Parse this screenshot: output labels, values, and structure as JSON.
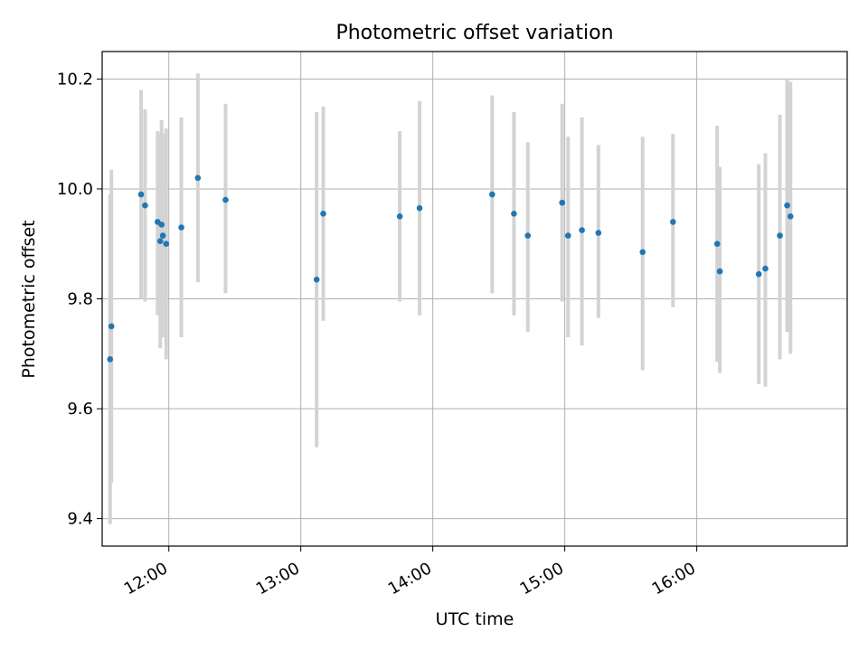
{
  "chart_data": {
    "type": "scatter",
    "title": "Photometric offset variation",
    "xlabel": "UTC time",
    "ylabel": "Photometric offset",
    "xlim_hours": [
      11.495,
      17.14
    ],
    "ylim": [
      9.35,
      10.25
    ],
    "grid": true,
    "x_ticks": [
      {
        "value": 12,
        "label": "12:00"
      },
      {
        "value": 13,
        "label": "13:00"
      },
      {
        "value": 14,
        "label": "14:00"
      },
      {
        "value": 15,
        "label": "15:00"
      },
      {
        "value": 16,
        "label": "16:00"
      }
    ],
    "y_ticks": [
      {
        "value": 9.4,
        "label": "9.4"
      },
      {
        "value": 9.6,
        "label": "9.6"
      },
      {
        "value": 9.8,
        "label": "9.8"
      },
      {
        "value": 10.0,
        "label": "10.0"
      },
      {
        "value": 10.2,
        "label": "10.2"
      }
    ],
    "point_color": "#1f77b4",
    "errorbar_color": "#d3d3d3",
    "points": [
      {
        "x": 11.555,
        "y": 9.69,
        "ylow": 9.39,
        "yhigh": 9.99
      },
      {
        "x": 11.565,
        "y": 9.75,
        "ylow": 9.465,
        "yhigh": 10.035
      },
      {
        "x": 11.79,
        "y": 9.99,
        "ylow": 9.8,
        "yhigh": 10.18
      },
      {
        "x": 11.82,
        "y": 9.97,
        "ylow": 9.795,
        "yhigh": 10.145
      },
      {
        "x": 11.915,
        "y": 9.94,
        "ylow": 9.77,
        "yhigh": 10.105
      },
      {
        "x": 11.935,
        "y": 9.905,
        "ylow": 9.71,
        "yhigh": 10.1
      },
      {
        "x": 11.945,
        "y": 9.935,
        "ylow": 9.76,
        "yhigh": 10.125
      },
      {
        "x": 11.955,
        "y": 9.915,
        "ylow": 9.73,
        "yhigh": 10.1
      },
      {
        "x": 11.98,
        "y": 9.9,
        "ylow": 9.69,
        "yhigh": 10.11
      },
      {
        "x": 12.095,
        "y": 9.93,
        "ylow": 9.73,
        "yhigh": 10.13
      },
      {
        "x": 12.22,
        "y": 10.02,
        "ylow": 9.83,
        "yhigh": 10.21
      },
      {
        "x": 12.43,
        "y": 9.98,
        "ylow": 9.81,
        "yhigh": 10.155
      },
      {
        "x": 13.12,
        "y": 9.835,
        "ylow": 9.53,
        "yhigh": 10.14
      },
      {
        "x": 13.17,
        "y": 9.955,
        "ylow": 9.76,
        "yhigh": 10.15
      },
      {
        "x": 13.75,
        "y": 9.95,
        "ylow": 9.795,
        "yhigh": 10.105
      },
      {
        "x": 13.9,
        "y": 9.965,
        "ylow": 9.77,
        "yhigh": 10.16
      },
      {
        "x": 14.45,
        "y": 9.99,
        "ylow": 9.81,
        "yhigh": 10.17
      },
      {
        "x": 14.615,
        "y": 9.955,
        "ylow": 9.77,
        "yhigh": 10.14
      },
      {
        "x": 14.72,
        "y": 9.915,
        "ylow": 9.74,
        "yhigh": 10.085
      },
      {
        "x": 14.98,
        "y": 9.975,
        "ylow": 9.795,
        "yhigh": 10.155
      },
      {
        "x": 15.025,
        "y": 9.915,
        "ylow": 9.73,
        "yhigh": 10.095
      },
      {
        "x": 15.13,
        "y": 9.925,
        "ylow": 9.715,
        "yhigh": 10.13
      },
      {
        "x": 15.255,
        "y": 9.92,
        "ylow": 9.765,
        "yhigh": 10.08
      },
      {
        "x": 15.59,
        "y": 9.885,
        "ylow": 9.67,
        "yhigh": 10.095
      },
      {
        "x": 15.82,
        "y": 9.94,
        "ylow": 9.785,
        "yhigh": 10.1
      },
      {
        "x": 16.155,
        "y": 9.9,
        "ylow": 9.685,
        "yhigh": 10.115
      },
      {
        "x": 16.175,
        "y": 9.85,
        "ylow": 9.665,
        "yhigh": 10.04
      },
      {
        "x": 16.47,
        "y": 9.845,
        "ylow": 9.645,
        "yhigh": 10.045
      },
      {
        "x": 16.52,
        "y": 9.855,
        "ylow": 9.64,
        "yhigh": 10.065
      },
      {
        "x": 16.63,
        "y": 9.915,
        "ylow": 9.69,
        "yhigh": 10.135
      },
      {
        "x": 16.685,
        "y": 9.97,
        "ylow": 9.74,
        "yhigh": 10.2
      },
      {
        "x": 16.71,
        "y": 9.95,
        "ylow": 9.7,
        "yhigh": 10.195
      }
    ]
  }
}
